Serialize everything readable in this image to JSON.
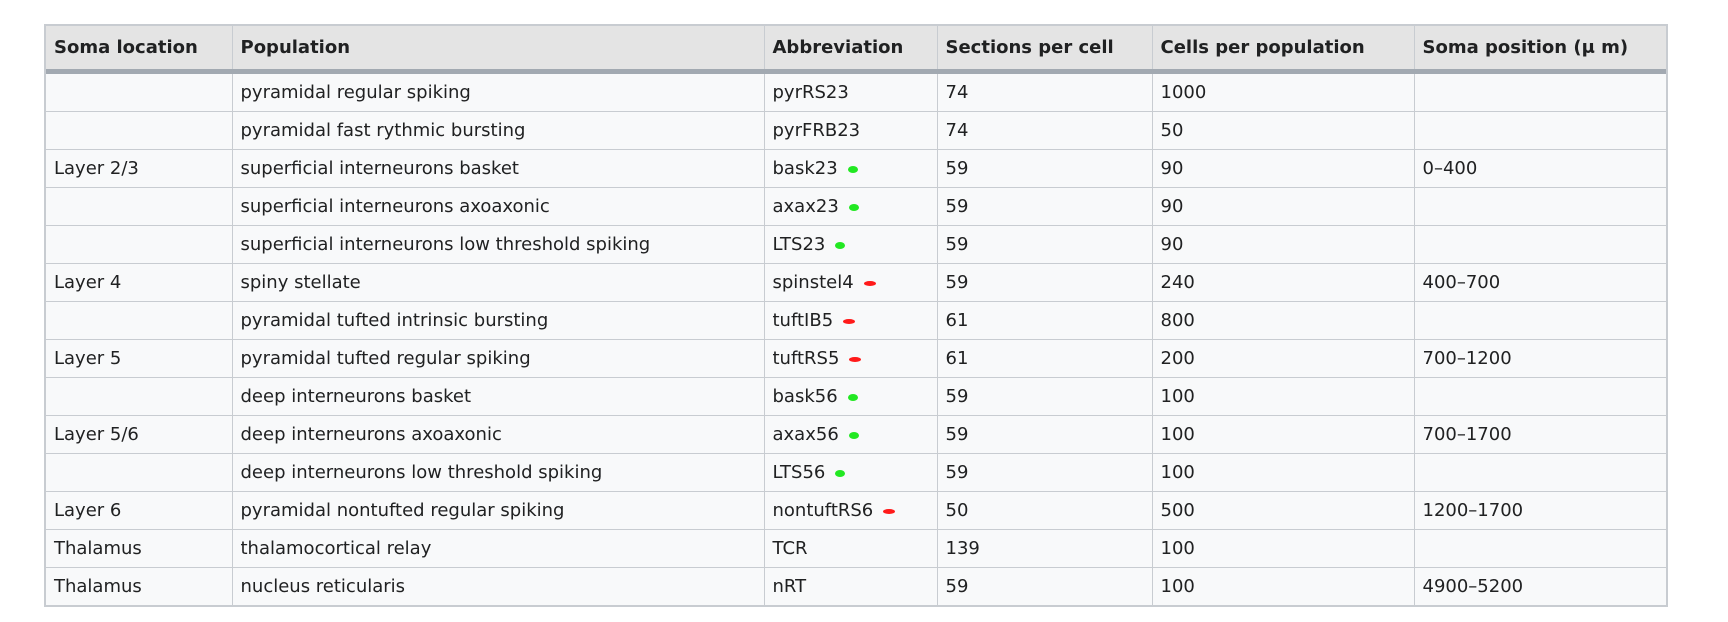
{
  "colors": {
    "header_bg": "#e4e4e4",
    "cell_bg": "#f8f9fa",
    "border": "#c8ccd1",
    "excitatory_mark": "#ff1a1a",
    "inhibitory_mark": "#22e822"
  },
  "table": {
    "headers": [
      "Soma location",
      "Population",
      "Abbreviation",
      "Sections per cell",
      "Cells per population",
      "Soma position (μ m)"
    ],
    "rows": [
      {
        "soma_location": "",
        "population": "pyramidal regular spiking",
        "abbreviation": "pyrRS23",
        "mark": "",
        "sections": "74",
        "cells": "1000",
        "soma_position": ""
      },
      {
        "soma_location": "",
        "population": "pyramidal fast rythmic bursting",
        "abbreviation": "pyrFRB23",
        "mark": "",
        "sections": "74",
        "cells": "50",
        "soma_position": ""
      },
      {
        "soma_location": "Layer 2/3",
        "population": "superficial interneurons basket",
        "abbreviation": "bask23",
        "mark": "green",
        "sections": "59",
        "cells": "90",
        "soma_position": "0–400"
      },
      {
        "soma_location": "",
        "population": "superficial interneurons axoaxonic",
        "abbreviation": "axax23",
        "mark": "green",
        "sections": "59",
        "cells": "90",
        "soma_position": ""
      },
      {
        "soma_location": "",
        "population": "superficial interneurons low threshold spiking",
        "abbreviation": "LTS23",
        "mark": "green",
        "sections": "59",
        "cells": "90",
        "soma_position": ""
      },
      {
        "soma_location": "Layer 4",
        "population": "spiny stellate",
        "abbreviation": "spinstel4",
        "mark": "red",
        "sections": "59",
        "cells": "240",
        "soma_position": "400–700"
      },
      {
        "soma_location": "",
        "population": "pyramidal tufted intrinsic bursting",
        "abbreviation": "tuftIB5",
        "mark": "red",
        "sections": "61",
        "cells": "800",
        "soma_position": ""
      },
      {
        "soma_location": "Layer 5",
        "population": "pyramidal tufted regular spiking",
        "abbreviation": "tuftRS5",
        "mark": "red",
        "sections": "61",
        "cells": "200",
        "soma_position": "700–1200"
      },
      {
        "soma_location": "",
        "population": "deep interneurons basket",
        "abbreviation": "bask56",
        "mark": "green",
        "sections": "59",
        "cells": "100",
        "soma_position": ""
      },
      {
        "soma_location": "Layer 5/6",
        "population": "deep interneurons axoaxonic",
        "abbreviation": "axax56",
        "mark": "green",
        "sections": "59",
        "cells": "100",
        "soma_position": "700–1700"
      },
      {
        "soma_location": "",
        "population": "deep interneurons low threshold spiking",
        "abbreviation": "LTS56",
        "mark": "green",
        "sections": "59",
        "cells": "100",
        "soma_position": ""
      },
      {
        "soma_location": "Layer 6",
        "population": "pyramidal nontufted regular spiking",
        "abbreviation": "nontuftRS6",
        "mark": "red",
        "sections": "50",
        "cells": "500",
        "soma_position": "1200–1700"
      },
      {
        "soma_location": "Thalamus",
        "population": "thalamocortical relay",
        "abbreviation": "TCR",
        "mark": "",
        "sections": "139",
        "cells": "100",
        "soma_position": ""
      },
      {
        "soma_location": "Thalamus",
        "population": "nucleus reticularis",
        "abbreviation": "nRT",
        "mark": "",
        "sections": "59",
        "cells": "100",
        "soma_position": "4900–5200"
      }
    ]
  }
}
